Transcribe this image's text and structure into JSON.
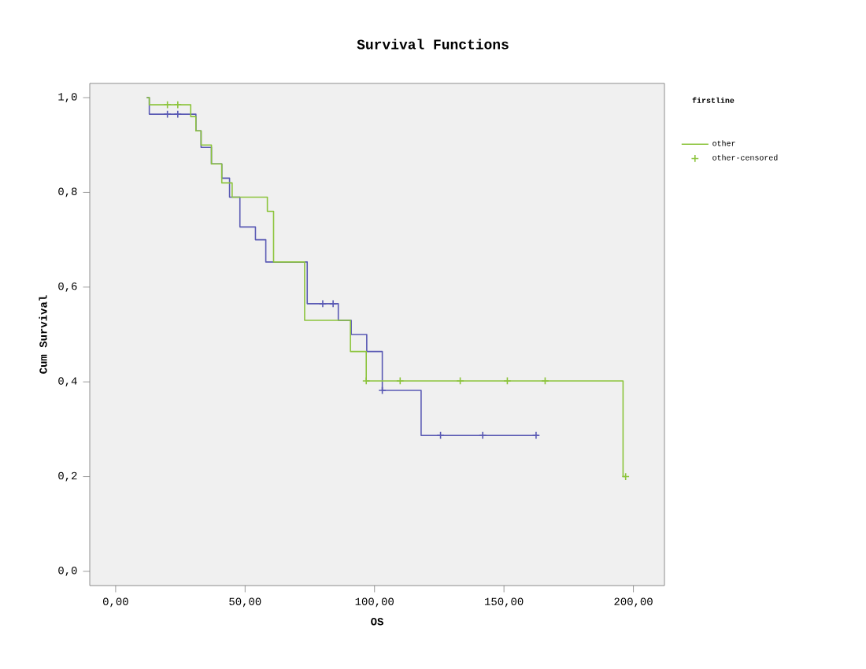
{
  "chart_data": {
    "type": "step",
    "title": "Survival Functions",
    "xlabel": "OS",
    "ylabel": "Cum Survival",
    "legend_title": "firstline",
    "legend": "right",
    "xlim": [
      -10,
      212
    ],
    "ylim": [
      -0.03,
      1.03
    ],
    "xticks": [
      {
        "value": 0,
        "label": "0,00"
      },
      {
        "value": 50,
        "label": "50,00"
      },
      {
        "value": 100,
        "label": "100,00"
      },
      {
        "value": 150,
        "label": "150,00"
      },
      {
        "value": 200,
        "label": "200,00"
      }
    ],
    "yticks": [
      {
        "value": 0,
        "label": "0,0"
      },
      {
        "value": 0.2,
        "label": "0,2"
      },
      {
        "value": 0.4,
        "label": "0,4"
      },
      {
        "value": 0.6,
        "label": "0,6"
      },
      {
        "value": 0.8,
        "label": "0,8"
      },
      {
        "value": 1.0,
        "label": "1,0"
      }
    ],
    "series": [
      {
        "color": "#5a5ab4",
        "x": [
          12,
          13,
          31,
          33,
          37,
          41,
          44,
          48,
          54,
          58,
          74,
          86,
          91,
          97,
          103,
          118,
          163.4
        ],
        "values": [
          1.0,
          0.965,
          0.93,
          0.895,
          0.86,
          0.83,
          0.79,
          0.727,
          0.7,
          0.653,
          0.565,
          0.53,
          0.5,
          0.464,
          0.382,
          0.287,
          0.287
        ]
      },
      {
        "name": "other",
        "color": "#8cc43c",
        "x": [
          12,
          13,
          29,
          31,
          33,
          37,
          41,
          45,
          58.6,
          61,
          73,
          90.7,
          96.8,
          196,
          197
        ],
        "values": [
          1.0,
          0.985,
          0.96,
          0.93,
          0.9,
          0.86,
          0.82,
          0.79,
          0.76,
          0.653,
          0.53,
          0.464,
          0.402,
          0.2,
          0.2
        ]
      },
      {
        "type": "scatter",
        "marker": "cross",
        "color": "#5a5ab4",
        "x": [
          20,
          24,
          80,
          84,
          103,
          125.5,
          141.8,
          162.4
        ],
        "values": [
          0.965,
          0.965,
          0.565,
          0.565,
          0.382,
          0.287,
          0.287,
          0.287
        ]
      },
      {
        "type": "scatter",
        "marker": "cross",
        "name": "other-censored",
        "color": "#8cc43c",
        "x": [
          20,
          24,
          96.8,
          109.9,
          133.1,
          151.3,
          165.9,
          197
        ],
        "values": [
          0.985,
          0.985,
          0.402,
          0.402,
          0.402,
          0.402,
          0.402,
          0.2
        ]
      }
    ]
  }
}
